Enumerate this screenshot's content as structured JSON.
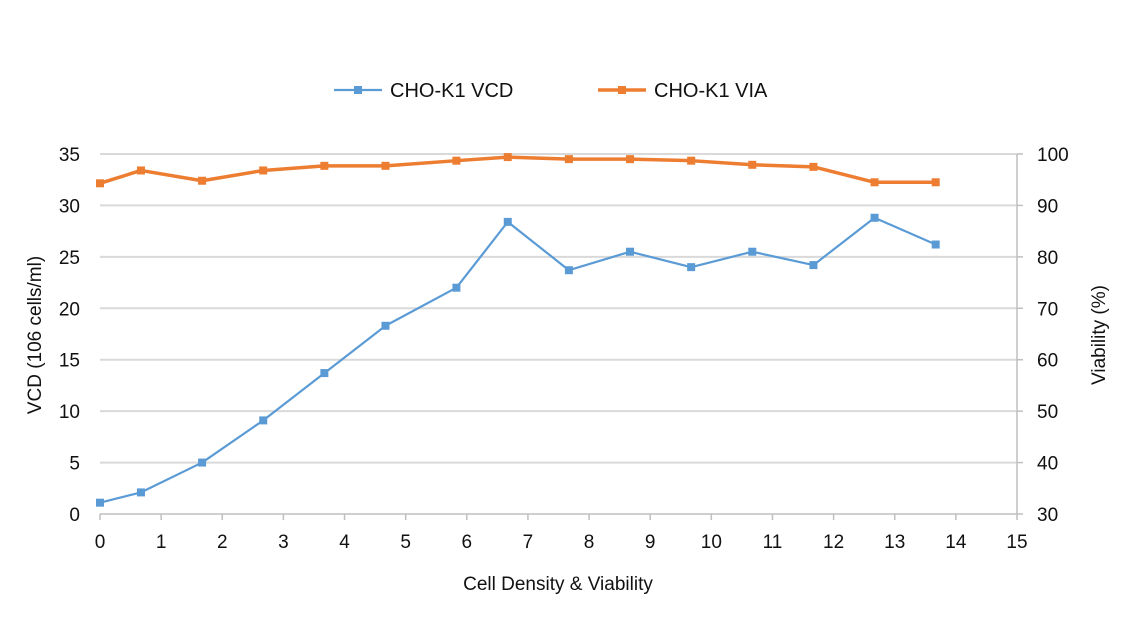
{
  "chart_data": {
    "type": "line",
    "xlabel": "Cell Density & Viability",
    "ylabel_left": "VCD (106 cells/ml)",
    "ylabel_right": "Viability (%)",
    "xlim": [
      0,
      15
    ],
    "ylim_left": [
      0,
      35
    ],
    "ylim_right": [
      30,
      100
    ],
    "x_ticks": [
      0,
      1,
      2,
      3,
      4,
      5,
      6,
      7,
      8,
      9,
      10,
      11,
      12,
      13,
      14,
      15
    ],
    "y_ticks_left": [
      0,
      5,
      10,
      15,
      20,
      25,
      30,
      35
    ],
    "y_ticks_right": [
      30,
      40,
      50,
      60,
      70,
      80,
      90,
      100
    ],
    "grid": true,
    "legend_position": "top-center",
    "series": [
      {
        "name": "CHO-K1 VCD",
        "axis": "left",
        "color": "#5b9bd5",
        "marker": "square",
        "x": [
          0,
          0.67,
          1.67,
          2.67,
          3.67,
          4.67,
          5.83,
          6.67,
          7.67,
          8.67,
          9.67,
          10.67,
          11.67,
          12.67,
          13.67
        ],
        "y": [
          1.1,
          2.1,
          5.0,
          9.1,
          13.7,
          18.3,
          22.0,
          28.4,
          23.7,
          25.5,
          24.0,
          25.5,
          24.2,
          28.8,
          26.2
        ]
      },
      {
        "name": "CHO-K1 VIA",
        "axis": "right",
        "color": "#ed7d31",
        "marker": "square",
        "x": [
          0,
          0.67,
          1.67,
          2.67,
          3.67,
          4.67,
          5.83,
          6.67,
          7.67,
          8.67,
          9.67,
          10.67,
          11.67,
          12.67,
          13.67
        ],
        "y": [
          94.3,
          96.8,
          94.8,
          96.8,
          97.7,
          97.7,
          98.7,
          99.4,
          99.0,
          99.0,
          98.7,
          97.9,
          97.5,
          94.5,
          94.5
        ]
      }
    ]
  }
}
